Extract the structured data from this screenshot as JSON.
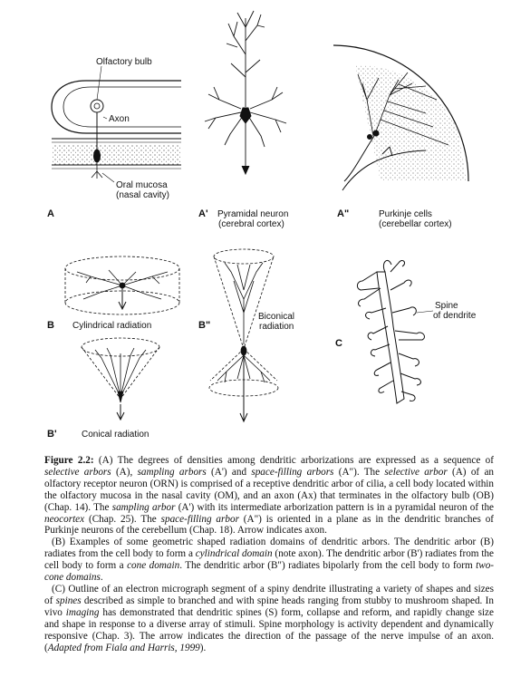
{
  "figure": {
    "labels": {
      "olfactory_bulb": "Olfactory bulb",
      "axon": "Axon",
      "oral_mucosa": "Oral mucosa",
      "nasal_cavity": "(nasal cavity)",
      "A": "A",
      "A_prime": "A'",
      "pyramidal_neuron": "Pyramidal neuron",
      "cerebral_cortex": "(cerebral cortex)",
      "A_dprime": "A\"",
      "purkinje_cells": "Purkinje cells",
      "cerebellar_cortex": "(cerebellar cortex)",
      "B": "B",
      "cylindrical_radiation": "Cylindrical radiation",
      "B_dprime": "B\"",
      "biconical": "Biconical",
      "radiation": "radiation",
      "spine": "Spine",
      "of_dendrite": "of dendrite",
      "C": "C",
      "B_prime": "B'",
      "conical_radiation": "Conical radiation"
    }
  },
  "caption": {
    "fig_label": "Figure 2.2:",
    "p1": [
      {
        "t": " (A) The degrees of densities among dendritic arborizations are expressed as a sequence of ",
        "s": ""
      },
      {
        "t": "selective arbors",
        "s": "i"
      },
      {
        "t": " (A), ",
        "s": ""
      },
      {
        "t": "sampling arbors",
        "s": "i"
      },
      {
        "t": " (A') and ",
        "s": ""
      },
      {
        "t": "space-filling arbors",
        "s": "i"
      },
      {
        "t": " (A\"). The ",
        "s": ""
      },
      {
        "t": "selective arbor",
        "s": "i"
      },
      {
        "t": " (A) of an olfactory receptor neuron (ORN) is comprised of a receptive dendritic arbor of cilia, a cell body located within the olfactory mucosa in the nasal cavity (OM), and an axon (Ax) that terminates in the olfactory bulb (OB) (Chap. 14). The ",
        "s": ""
      },
      {
        "t": "sampling arbor",
        "s": "i"
      },
      {
        "t": " (A') with its intermediate arborization pattern is in a pyramidal neuron of the ",
        "s": ""
      },
      {
        "t": "neocortex",
        "s": "i"
      },
      {
        "t": " (Chap. 25). The ",
        "s": ""
      },
      {
        "t": "space-filling arbor",
        "s": "i"
      },
      {
        "t": " (A\") is oriented in a plane as in the dendritic branches of Purkinje neurons of the cerebellum (Chap. 18). Arrow indicates axon.",
        "s": ""
      }
    ],
    "p2": [
      {
        "t": "(B) Examples of some geometric shaped radiation domains of dendritic arbors. The dendritic arbor (B) radiates from the cell body to form a ",
        "s": ""
      },
      {
        "t": "cylindrical domain",
        "s": "i"
      },
      {
        "t": " (note axon). The dendritic arbor (B') radiates from the cell body to form a ",
        "s": ""
      },
      {
        "t": "cone domain",
        "s": "i"
      },
      {
        "t": ". The dendritic arbor (B\") radiates bipolarly from the cell body to form ",
        "s": ""
      },
      {
        "t": "two-cone domains",
        "s": "i"
      },
      {
        "t": ".",
        "s": ""
      }
    ],
    "p3": [
      {
        "t": "(C) Outline of an electron micrograph segment of a spiny dendrite illustrating a variety of shapes and sizes of ",
        "s": ""
      },
      {
        "t": "spines",
        "s": "i"
      },
      {
        "t": " described as simple to branched and with spine heads ranging from stubby to mushroom shaped. In vivo ",
        "s": ""
      },
      {
        "t": "imaging",
        "s": "i"
      },
      {
        "t": " has demonstrated that dendritic spines (S) form, collapse and reform, and rapidly change size and shape in response to a diverse array of stimuli. Spine morphology is activity dependent and dynamically responsive (Chap. 3). The arrow indicates the direction of the passage of the nerve impulse of an axon. (",
        "s": ""
      },
      {
        "t": "Adapted from Fiala and Harris, 1999",
        "s": "i"
      },
      {
        "t": ").",
        "s": ""
      }
    ]
  }
}
